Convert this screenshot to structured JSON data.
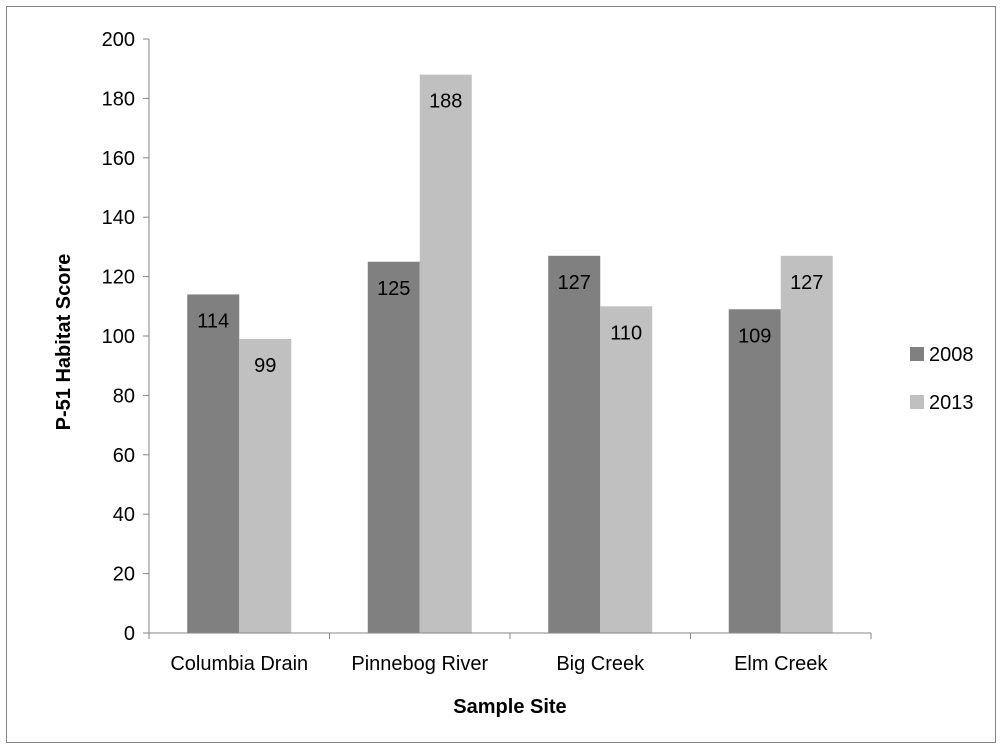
{
  "chart_data": {
    "type": "bar",
    "title": "",
    "xlabel": "Sample Site",
    "ylabel": "P-51 Habitat Score",
    "categories": [
      "Columbia Drain",
      "Pinnebog River",
      "Big Creek",
      "Elm Creek"
    ],
    "series": [
      {
        "name": "2008",
        "values": [
          114,
          125,
          127,
          109
        ],
        "color": "#808080"
      },
      {
        "name": "2013",
        "values": [
          99,
          188,
          110,
          127
        ],
        "color": "#c0c0c0"
      }
    ],
    "ylim": [
      0,
      200
    ],
    "yticks": [
      0,
      20,
      40,
      60,
      80,
      100,
      120,
      140,
      160,
      180,
      200
    ],
    "data_labels": true,
    "grid": false,
    "legend_position": "right"
  }
}
